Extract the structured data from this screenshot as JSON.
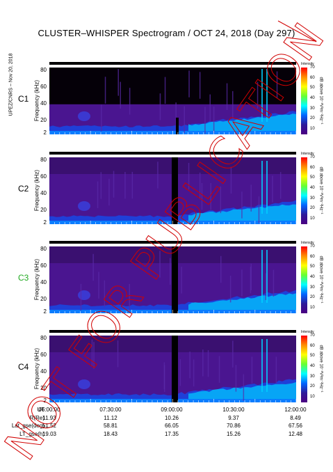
{
  "header": {
    "title": "CLUSTER–WHISPER Spectrogram / OCT 24, 2018 (Day 297)",
    "side_note": "UPEZ/CNRS – Nov 20, 2018"
  },
  "watermark": "NOT FOR PUBLICATION",
  "colorbar": {
    "title": "Intensity",
    "label": "dB above 10⁻⁸V²m⁻²Hz⁻¹",
    "ticks": [
      "70",
      "60",
      "50",
      "40",
      "30",
      "20",
      "10"
    ],
    "colors": [
      "#ff0000",
      "#ff8c00",
      "#ffff00",
      "#66ff33",
      "#00ffff",
      "#0066ff",
      "#2e1a9a",
      "#4b0082"
    ]
  },
  "chart_data": {
    "type": "heatmap",
    "title": "CLUSTER–WHISPER Spectrogram / OCT 24, 2018 (Day 297)",
    "ylabel": "Frequency (kHz)",
    "ylim": [
      2,
      80
    ],
    "yticks": [
      "80",
      "60",
      "40",
      "20",
      "2"
    ],
    "xlim": [
      "06:00:00",
      "12:00:00"
    ],
    "zlim": [
      10,
      70
    ],
    "panels": [
      {
        "name": "C1",
        "label_color": "#000000"
      },
      {
        "name": "C2",
        "label_color": "#000000"
      },
      {
        "name": "C3",
        "label_color": "#22aa22"
      },
      {
        "name": "C4",
        "label_color": "#000000"
      }
    ],
    "orbit": {
      "labels": [
        "UT",
        "R(Re)",
        "Lat_gse(deg)",
        "LT_gse(h)"
      ],
      "columns": [
        {
          "values": [
            "06:00:00",
            "11.93",
            "51.52",
            "19.03"
          ]
        },
        {
          "values": [
            "07:30:00",
            "11.12",
            "58.81",
            "18.43"
          ]
        },
        {
          "values": [
            "09:00:00",
            "10.26",
            "66.05",
            "17.35"
          ]
        },
        {
          "values": [
            "10:30:00",
            "9.37",
            "70.86",
            "15.26"
          ]
        },
        {
          "values": [
            "12:00:00",
            "8.49",
            "67.56",
            "12.48"
          ]
        }
      ]
    }
  }
}
